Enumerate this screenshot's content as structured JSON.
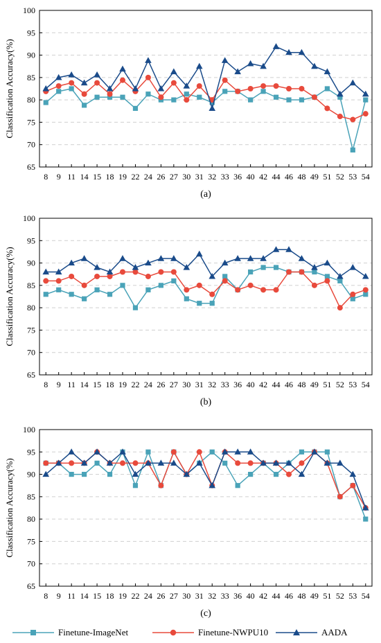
{
  "legend": [
    "Finetune-ImageNet",
    "Finetune-NWPU10",
    "AADA"
  ],
  "colors": {
    "imagenet": "#4aa3b8",
    "nwpu": "#e84a3c",
    "aada": "#1a4b8a",
    "grid": "#cfcfcf"
  },
  "chart_data": [
    {
      "type": "line",
      "panel_label": "(a)",
      "ylabel": "Classification Accuracy(%)",
      "ylim": [
        65,
        100
      ],
      "yticks": [
        65,
        70,
        75,
        80,
        85,
        90,
        95,
        100
      ],
      "grid": "horizontal dashed",
      "categories": [
        "8",
        "9",
        "11",
        "14",
        "15",
        "18",
        "19",
        "22",
        "24",
        "26",
        "27",
        "30",
        "31",
        "32",
        "33",
        "36",
        "40",
        "42",
        "44",
        "46",
        "48",
        "49",
        "51",
        "52",
        "53",
        "54"
      ],
      "series": [
        {
          "name": "Finetune-ImageNet",
          "values": [
            79.4,
            81.9,
            82.5,
            78.8,
            80.6,
            80.6,
            80.6,
            78.1,
            81.3,
            80.0,
            80.0,
            81.3,
            80.6,
            79.4,
            81.9,
            81.9,
            80.0,
            81.9,
            80.6,
            80.0,
            80.0,
            80.6,
            82.5,
            80.6,
            68.8,
            80.0
          ]
        },
        {
          "name": "Finetune-NWPU10",
          "values": [
            81.9,
            83.1,
            83.8,
            81.3,
            83.8,
            81.3,
            84.4,
            81.9,
            85.0,
            80.6,
            83.8,
            80.0,
            83.1,
            80.0,
            84.4,
            81.9,
            82.5,
            83.1,
            83.1,
            82.5,
            82.5,
            80.6,
            78.1,
            76.3,
            75.6,
            76.9
          ]
        },
        {
          "name": "AADA",
          "values": [
            82.5,
            85.0,
            85.6,
            83.8,
            85.6,
            82.5,
            86.9,
            82.5,
            88.8,
            82.5,
            86.3,
            83.1,
            87.5,
            78.1,
            88.8,
            86.3,
            88.1,
            87.5,
            91.9,
            90.6,
            90.6,
            87.5,
            86.3,
            81.3,
            83.8,
            81.3
          ]
        }
      ]
    },
    {
      "type": "line",
      "panel_label": "(b)",
      "ylabel": "Classification Accuracy(%)",
      "ylim": [
        65,
        100
      ],
      "yticks": [
        65,
        70,
        75,
        80,
        85,
        90,
        95,
        100
      ],
      "grid": "horizontal dashed",
      "categories": [
        "8",
        "9",
        "11",
        "14",
        "15",
        "18",
        "19",
        "22",
        "24",
        "26",
        "27",
        "30",
        "31",
        "32",
        "33",
        "36",
        "40",
        "42",
        "44",
        "46",
        "48",
        "49",
        "51",
        "52",
        "53",
        "54"
      ],
      "series": [
        {
          "name": "Finetune-ImageNet",
          "values": [
            83,
            84,
            83,
            82,
            84,
            83,
            85,
            80,
            84,
            85,
            86,
            82,
            81,
            81,
            87,
            84,
            88,
            89,
            89,
            88,
            88,
            88,
            87,
            86,
            82,
            83
          ]
        },
        {
          "name": "Finetune-NWPU10",
          "values": [
            86,
            86,
            87,
            85,
            87,
            87,
            88,
            88,
            87,
            88,
            88,
            84,
            85,
            83,
            86,
            84,
            85,
            84,
            84,
            88,
            88,
            85,
            86,
            80,
            83,
            84
          ]
        },
        {
          "name": "AADA",
          "values": [
            88,
            88,
            90,
            91,
            89,
            88,
            91,
            89,
            90,
            91,
            91,
            89,
            92,
            87,
            90,
            91,
            91,
            91,
            93,
            93,
            91,
            89,
            90,
            87,
            89,
            87
          ]
        }
      ]
    },
    {
      "type": "line",
      "panel_label": "(c)",
      "ylabel": "Classification Accuracy(%)",
      "ylim": [
        65,
        100
      ],
      "yticks": [
        65,
        70,
        75,
        80,
        85,
        90,
        95,
        100
      ],
      "grid": "horizontal dashed",
      "categories": [
        "8",
        "9",
        "11",
        "14",
        "15",
        "18",
        "19",
        "22",
        "24",
        "26",
        "27",
        "30",
        "31",
        "32",
        "33",
        "36",
        "40",
        "42",
        "44",
        "46",
        "48",
        "49",
        "51",
        "52",
        "53",
        "54"
      ],
      "series": [
        {
          "name": "Finetune-ImageNet",
          "values": [
            92.5,
            92.5,
            90,
            90,
            92.5,
            90,
            95,
            87.5,
            95,
            87.5,
            95,
            90,
            92.5,
            95,
            92.5,
            87.5,
            90,
            92.5,
            90,
            92.5,
            95,
            95,
            95,
            85,
            87.5,
            80
          ]
        },
        {
          "name": "Finetune-NWPU10",
          "values": [
            92.5,
            92.5,
            92.5,
            92.5,
            95,
            92.5,
            92.5,
            92.5,
            92.5,
            87.5,
            95,
            90,
            95,
            87.5,
            95,
            92.5,
            92.5,
            92.5,
            92.5,
            90,
            92.5,
            95,
            92.5,
            85,
            87.5,
            82.5
          ]
        },
        {
          "name": "AADA",
          "values": [
            90,
            92.5,
            95,
            92.5,
            95,
            92.5,
            95,
            90,
            92.5,
            92.5,
            92.5,
            90,
            92.5,
            87.5,
            95,
            95,
            95,
            92.5,
            92.5,
            92.5,
            90,
            95,
            92.5,
            92.5,
            90,
            82.5
          ]
        }
      ]
    }
  ]
}
